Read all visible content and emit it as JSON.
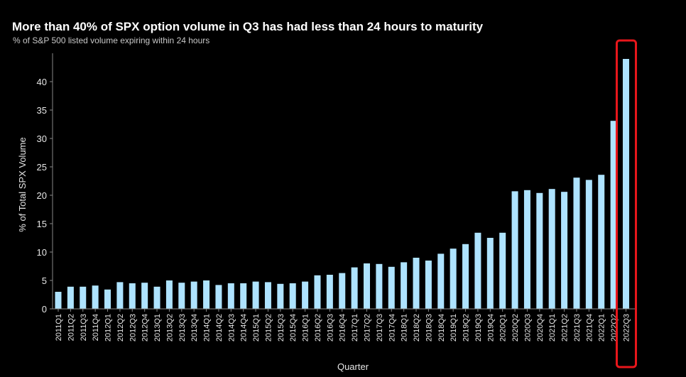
{
  "title": "More than 40% of SPX option volume in Q3 has had less than 24 hours to maturity",
  "subtitle": "% of S&P 500 listed volume expiring within 24 hours",
  "chart_data": {
    "type": "bar",
    "title": "More than 40% of SPX option volume in Q3 has had less than 24 hours to maturity",
    "subtitle": "% of S&P 500 listed volume expiring within 24 hours",
    "xlabel": "Quarter",
    "ylabel": "% of Total SPX Volume",
    "ylim": [
      0,
      45
    ],
    "yticks": [
      0,
      5,
      10,
      15,
      20,
      25,
      30,
      35,
      40
    ],
    "grid": false,
    "bar_color": "#aee3ff",
    "highlight_color": "#e8161b",
    "highlighted_category": "2022Q3",
    "categories": [
      "2011Q1",
      "2011Q2",
      "2011Q3",
      "2011Q4",
      "2012Q1",
      "2012Q2",
      "2012Q3",
      "2012Q4",
      "2013Q1",
      "2013Q2",
      "2013Q3",
      "2013Q4",
      "2014Q1",
      "2014Q2",
      "2014Q3",
      "2014Q4",
      "2015Q1",
      "2015Q2",
      "2015Q3",
      "2015Q4",
      "2016Q1",
      "2016Q2",
      "2016Q3",
      "2016Q4",
      "2017Q1",
      "2017Q2",
      "2017Q3",
      "2017Q4",
      "2018Q1",
      "2018Q2",
      "2018Q3",
      "2018Q4",
      "2019Q1",
      "2019Q2",
      "2019Q3",
      "2019Q4",
      "2020Q1",
      "2020Q2",
      "2020Q3",
      "2020Q4",
      "2021Q1",
      "2021Q2",
      "2021Q3",
      "2021Q4",
      "2022Q1",
      "2022Q2",
      "2022Q3"
    ],
    "values": [
      3.0,
      3.9,
      3.9,
      4.1,
      3.4,
      4.7,
      4.5,
      4.6,
      3.9,
      5.0,
      4.6,
      4.8,
      5.0,
      4.2,
      4.5,
      4.5,
      4.8,
      4.7,
      4.4,
      4.5,
      4.8,
      5.9,
      6.0,
      6.3,
      7.3,
      8.0,
      7.9,
      7.4,
      8.2,
      9.0,
      8.5,
      9.7,
      10.6,
      11.4,
      13.4,
      12.5,
      13.4,
      20.7,
      20.9,
      20.4,
      21.1,
      20.6,
      23.1,
      22.7,
      23.6,
      33.1,
      44.0
    ]
  }
}
